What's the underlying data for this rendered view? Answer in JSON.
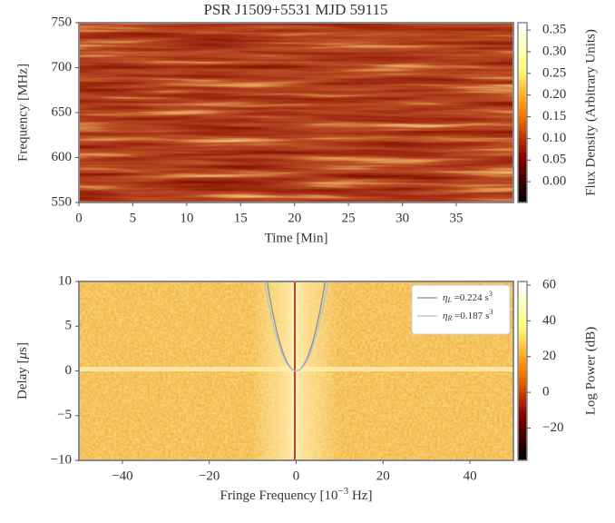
{
  "chart_data": [
    {
      "type": "heatmap",
      "title": "PSR J1509+5531 MJD 59115",
      "xlabel": "Time [Min]",
      "ylabel": "Frequency [MHz]",
      "xlim": [
        0,
        40.3
      ],
      "xticks": [
        0,
        5,
        10,
        15,
        20,
        25,
        30,
        35
      ],
      "ylim": [
        550,
        750
      ],
      "yticks": [
        550,
        600,
        650,
        700,
        750
      ],
      "colorbar": {
        "label": "Flux Density (Arbitrary Units)",
        "colormap": "afmhot",
        "lim": [
          -0.048,
          0.367
        ],
        "ticks": [
          {
            "value": 0,
            "label": "0.00"
          },
          {
            "value": 0.05,
            "label": "0.05"
          },
          {
            "value": 0.1,
            "label": "0.10"
          },
          {
            "value": 0.15,
            "label": "0.15"
          },
          {
            "value": 0.2,
            "label": "0.20"
          },
          {
            "value": 0.25,
            "label": "0.25"
          },
          {
            "value": 0.3,
            "label": "0.30"
          },
          {
            "value": 0.35,
            "label": "0.35"
          }
        ]
      }
    },
    {
      "type": "heatmap",
      "xlabel": {
        "text": "Fringe Frequency [10",
        "sup": "−3",
        "after": " Hz]"
      },
      "ylabel": {
        "text": "Delay [",
        "italic": "μ",
        "after": "s]"
      },
      "xlim": [
        -50,
        50
      ],
      "xticks": [
        {
          "value": -40,
          "label": "−40"
        },
        {
          "value": -20,
          "label": "−20"
        },
        0,
        20,
        40
      ],
      "ylim": [
        -10,
        10
      ],
      "yticks": [
        {
          "value": -10,
          "label": "−10"
        },
        {
          "value": -5,
          "label": "−5"
        },
        0,
        5,
        10
      ],
      "colorbar": {
        "label": "Log Power (dB)",
        "colormap": "afmhot",
        "lim": [
          -38,
          62
        ],
        "ticks": [
          {
            "value": -20,
            "label": "−20"
          },
          0,
          20,
          40,
          60
        ]
      },
      "legend": "upper right",
      "series": [
        {
          "symbol": "η",
          "sub": "L",
          "sep": " =",
          "eta": 0.224,
          "unit": "s",
          "unit_exp": "3",
          "color": "#7c8aa3"
        },
        {
          "symbol": "η",
          "sub": "R",
          "sep": " =",
          "eta": 0.187,
          "unit": "s",
          "unit_exp": "3",
          "color": "#a9c3d6"
        }
      ]
    }
  ]
}
